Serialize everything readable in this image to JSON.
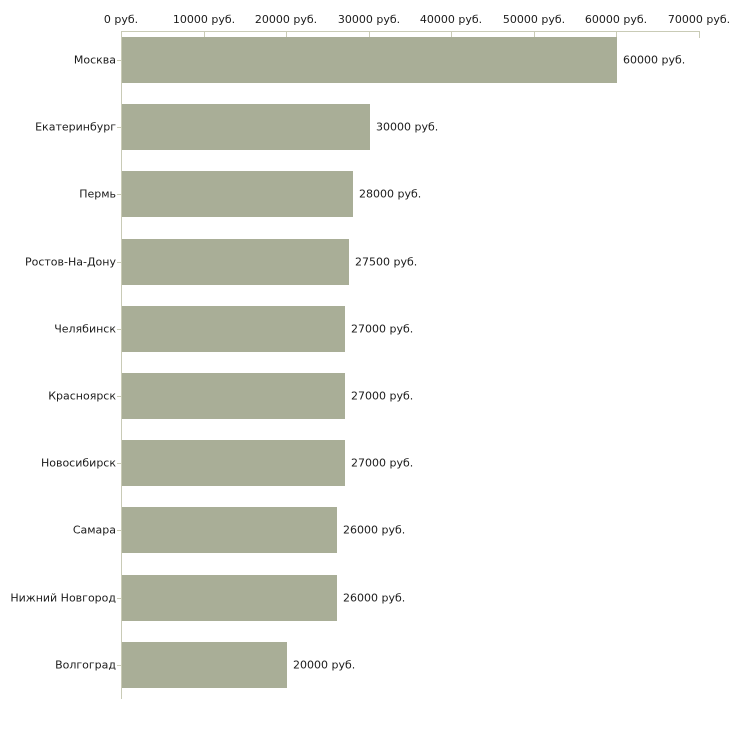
{
  "chart_data": {
    "type": "bar",
    "orientation": "horizontal",
    "title": "",
    "unit_suffix": " руб.",
    "categories": [
      "Москва",
      "Екатеринбург",
      "Пермь",
      "Ростов-На-Дону",
      "Челябинск",
      "Красноярск",
      "Новосибирск",
      "Самара",
      "Нижний Новгород",
      "Волгоград"
    ],
    "values": [
      60000,
      30000,
      28000,
      27500,
      27000,
      27000,
      27000,
      26000,
      26000,
      20000
    ],
    "value_labels": [
      "60000 руб.",
      "30000 руб.",
      "28000 руб.",
      "27500 руб.",
      "27000 руб.",
      "27000 руб.",
      "27000 руб.",
      "26000 руб.",
      "26000 руб.",
      "20000 руб."
    ],
    "x_axis": {
      "position": "top",
      "xlim": [
        0,
        70000
      ],
      "tick_values": [
        0,
        10000,
        20000,
        30000,
        40000,
        50000,
        60000,
        70000
      ],
      "tick_labels": [
        "0 руб.",
        "10000 руб.",
        "20000 руб.",
        "30000 руб.",
        "40000 руб.",
        "50000 руб.",
        "60000 руб.",
        "70000 руб."
      ]
    },
    "legend": "none",
    "grid": "off",
    "colors": {
      "bar": "#a9ae97",
      "axis": "#c9cbb6",
      "text": "#1c1c1c",
      "background": "#ffffff"
    }
  }
}
